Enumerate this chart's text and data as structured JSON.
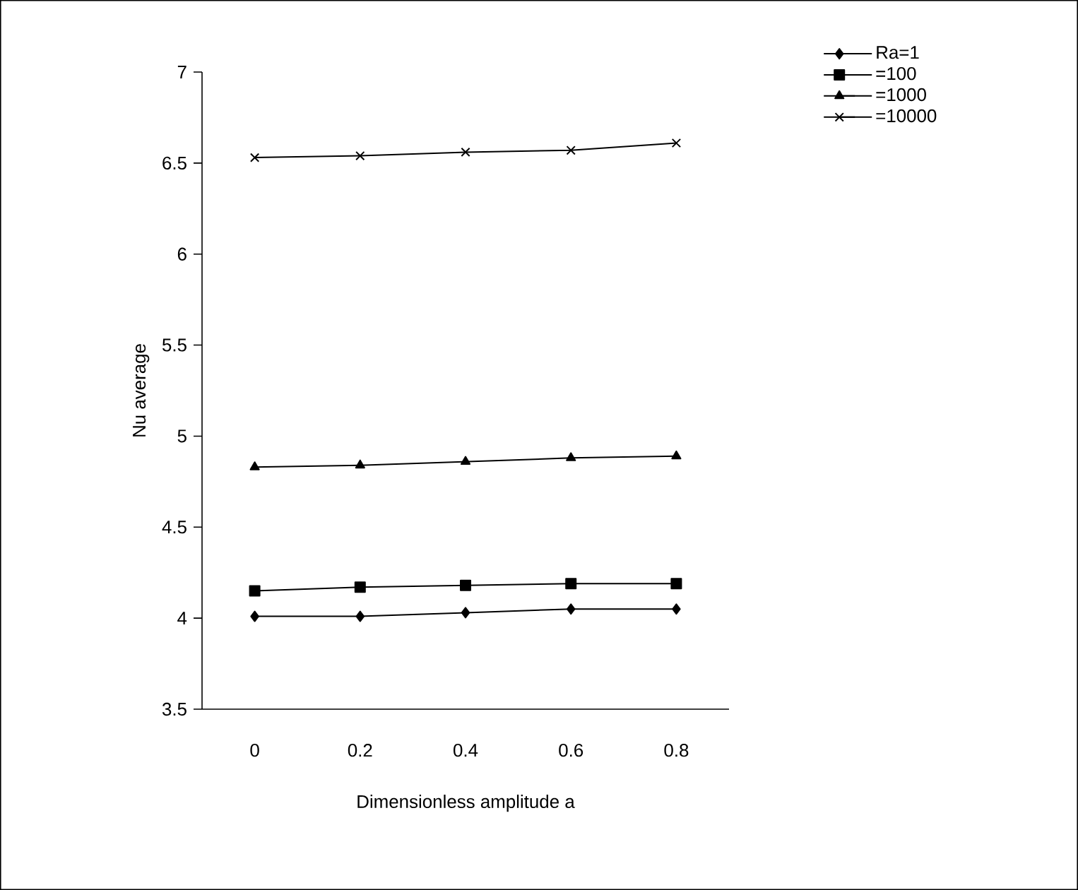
{
  "chart_data": {
    "type": "line",
    "xlabel": "Dimensionless amplitude a",
    "ylabel": "Nu average",
    "categories": [
      "0",
      "0.2",
      "0.4",
      "0.6",
      "0.8"
    ],
    "series": [
      {
        "name": "Ra=1",
        "color": "#000000",
        "marker": "diamond",
        "values": [
          4.01,
          4.01,
          4.03,
          4.05,
          4.05
        ]
      },
      {
        "name": "=100",
        "color": "#000000",
        "marker": "square",
        "values": [
          4.15,
          4.17,
          4.18,
          4.19,
          4.19
        ]
      },
      {
        "name": "=1000",
        "color": "#000000",
        "marker": "triangle",
        "values": [
          4.83,
          4.84,
          4.86,
          4.88,
          4.89
        ]
      },
      {
        "name": "=10000",
        "color": "#000000",
        "marker": "cross",
        "values": [
          6.53,
          6.54,
          6.56,
          6.57,
          6.61
        ]
      }
    ],
    "ylim": [
      3.5,
      7
    ],
    "yticks": [
      3.5,
      4,
      4.5,
      5,
      5.5,
      6,
      6.5,
      7
    ],
    "legend": "top right"
  }
}
